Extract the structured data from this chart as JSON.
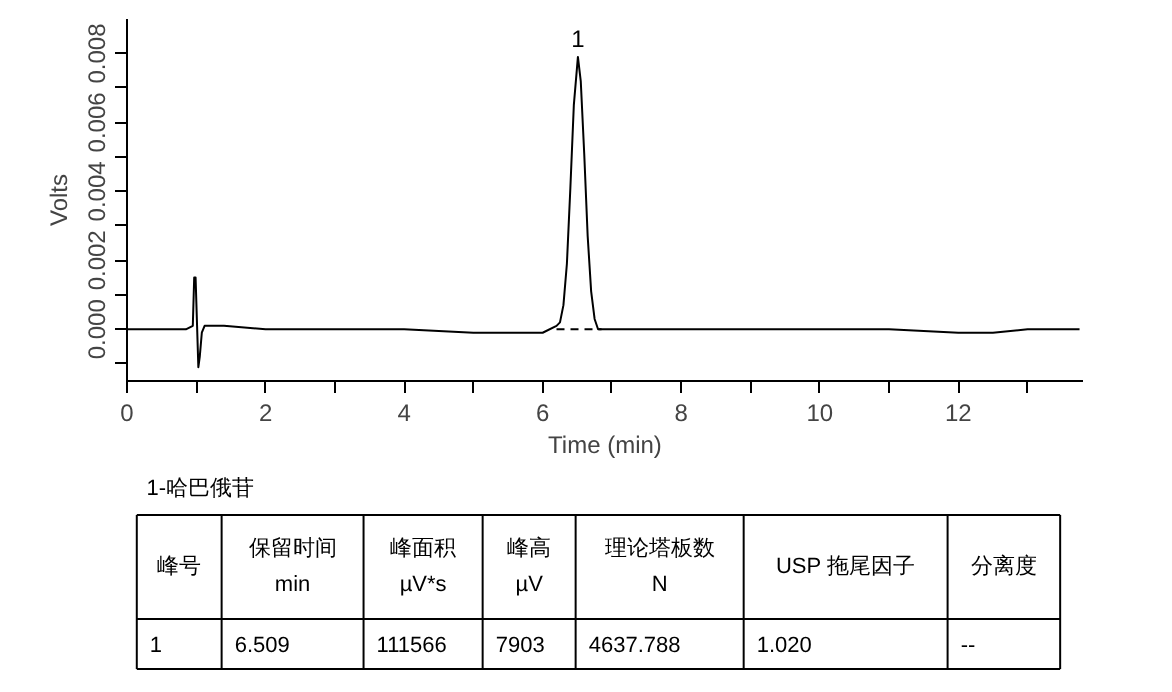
{
  "chart_data": {
    "type": "line",
    "xlabel": "Time (min)",
    "ylabel": "Volts",
    "xlim": [
      0,
      13.8
    ],
    "ylim": [
      -0.0015,
      0.009
    ],
    "xticks": [
      0,
      {
        "value": 1,
        "label": null
      },
      2,
      {
        "value": 3,
        "label": null
      },
      4,
      {
        "value": 5,
        "label": null
      },
      6,
      {
        "value": 7,
        "label": null
      },
      8,
      {
        "value": 9,
        "label": null
      },
      10,
      {
        "value": 11,
        "label": null
      },
      12,
      {
        "value": 13,
        "label": null
      }
    ],
    "yticks": [
      {
        "value": -0.001,
        "label": null
      },
      {
        "value": 0,
        "label": "0.000"
      },
      {
        "value": 0.001,
        "label": null
      },
      {
        "value": 0.002,
        "label": "0.002"
      },
      {
        "value": 0.003,
        "label": null
      },
      {
        "value": 0.004,
        "label": "0.004"
      },
      {
        "value": 0.005,
        "label": null
      },
      {
        "value": 0.006,
        "label": "0.006"
      },
      {
        "value": 0.007,
        "label": null
      },
      {
        "value": 0.008,
        "label": "0.008"
      }
    ],
    "series": [
      {
        "color": "#000000",
        "line_style": "solid",
        "x": [
          0,
          0.5,
          0.85,
          0.95,
          0.97,
          0.99,
          1.01,
          1.03,
          1.05,
          1.08,
          1.12,
          1.2,
          1.4,
          2,
          3,
          4,
          5,
          5.5,
          6,
          6.2,
          6.25,
          6.3,
          6.35,
          6.4,
          6.45,
          6.509,
          6.55,
          6.6,
          6.65,
          6.7,
          6.75,
          6.8,
          6.9,
          7.5,
          9,
          10,
          11,
          12,
          12.5,
          13,
          13.75
        ],
        "values": [
          0.0,
          0.0,
          0.0,
          0.0001,
          0.0015,
          0.0015,
          0.0002,
          -0.0011,
          -0.0008,
          -0.0001,
          0.0001,
          0.0001,
          0.0001,
          0.0,
          0.0,
          0.0,
          -0.0001,
          -0.0001,
          -0.0001,
          0.0001,
          0.0002,
          0.0007,
          0.0019,
          0.0041,
          0.0065,
          0.0079,
          0.0072,
          0.0051,
          0.0027,
          0.0011,
          0.0003,
          0.0,
          0.0,
          0.0,
          0.0,
          0.0,
          0.0,
          -0.0001,
          -0.0001,
          0.0,
          0.0
        ]
      },
      {
        "color": "#000000",
        "line_style": "dashed",
        "x": [
          6.2,
          6.85
        ],
        "values": [
          0.0,
          0.0
        ]
      }
    ],
    "annotations": [
      {
        "text": "1",
        "x": 6.509,
        "y": 0.0079
      },
      "1-哈巴俄苷",
      "峰号",
      "保留时间\nmin",
      "峰面积\nµV*s",
      "峰高\nµV",
      "理论塔板数\nN",
      "USP 拖尾因子",
      "分离度",
      "1",
      "6.509",
      "111566",
      "7903",
      "4637.788",
      "1.020",
      "--"
    ]
  }
}
